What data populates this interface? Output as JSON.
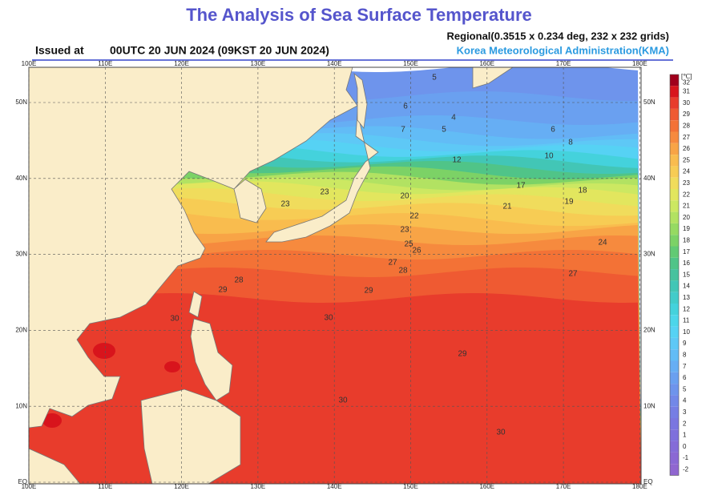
{
  "header": {
    "title": "The Analysis of Sea Surface Temperature",
    "issued_label": "Issued at",
    "issued_time": "00UTC 20 JUN 2024 (09KST 20 JUN 2024)",
    "grid_info": "Regional(0.3515 x 0.234 deg, 232 x 232 grids)",
    "agency": "Korea Meteorological Administration(KMA)"
  },
  "map": {
    "longitudes": [
      "100E",
      "110E",
      "120E",
      "130E",
      "140E",
      "150E",
      "160E",
      "170E",
      "180E"
    ],
    "latitudes": [
      "50N",
      "40N",
      "30N",
      "20N",
      "10N",
      "EQ"
    ],
    "contour_labels": [
      "5",
      "6",
      "4",
      "5",
      "6",
      "7",
      "8",
      "10",
      "12",
      "17",
      "18",
      "19",
      "20",
      "21",
      "22",
      "23",
      "23",
      "23",
      "24",
      "25",
      "26",
      "27",
      "27",
      "28",
      "28",
      "29",
      "29",
      "30",
      "30",
      "30",
      "30",
      "29"
    ]
  },
  "colorbar": {
    "unit": "[℃]",
    "labels": [
      "32",
      "31",
      "30",
      "29",
      "28",
      "27",
      "26",
      "25",
      "24",
      "23",
      "22",
      "21",
      "20",
      "19",
      "18",
      "17",
      "16",
      "15",
      "14",
      "13",
      "12",
      "11",
      "10",
      "9",
      "8",
      "7",
      "6",
      "5",
      "4",
      "3",
      "2",
      "1",
      "0",
      "-1",
      "-2"
    ],
    "colors": [
      "#a0001c",
      "#d8141c",
      "#e83c2c",
      "#ef5a32",
      "#f37236",
      "#f68a3e",
      "#f8a446",
      "#f9bc4e",
      "#f7cc54",
      "#f0dc5c",
      "#e2e65e",
      "#cce862",
      "#b2e262",
      "#96da62",
      "#7cd266",
      "#62ca74",
      "#50c488",
      "#46c29e",
      "#42c6b6",
      "#42ccca",
      "#44d2dc",
      "#4cd6ea",
      "#56d2f4",
      "#5ec8f6",
      "#62bcf6",
      "#66aef4",
      "#6aa0f0",
      "#6e94ec",
      "#7288e8",
      "#767ee4",
      "#7a76e0",
      "#7e70dc",
      "#846cd8",
      "#8a68d4",
      "#9066d0"
    ]
  }
}
